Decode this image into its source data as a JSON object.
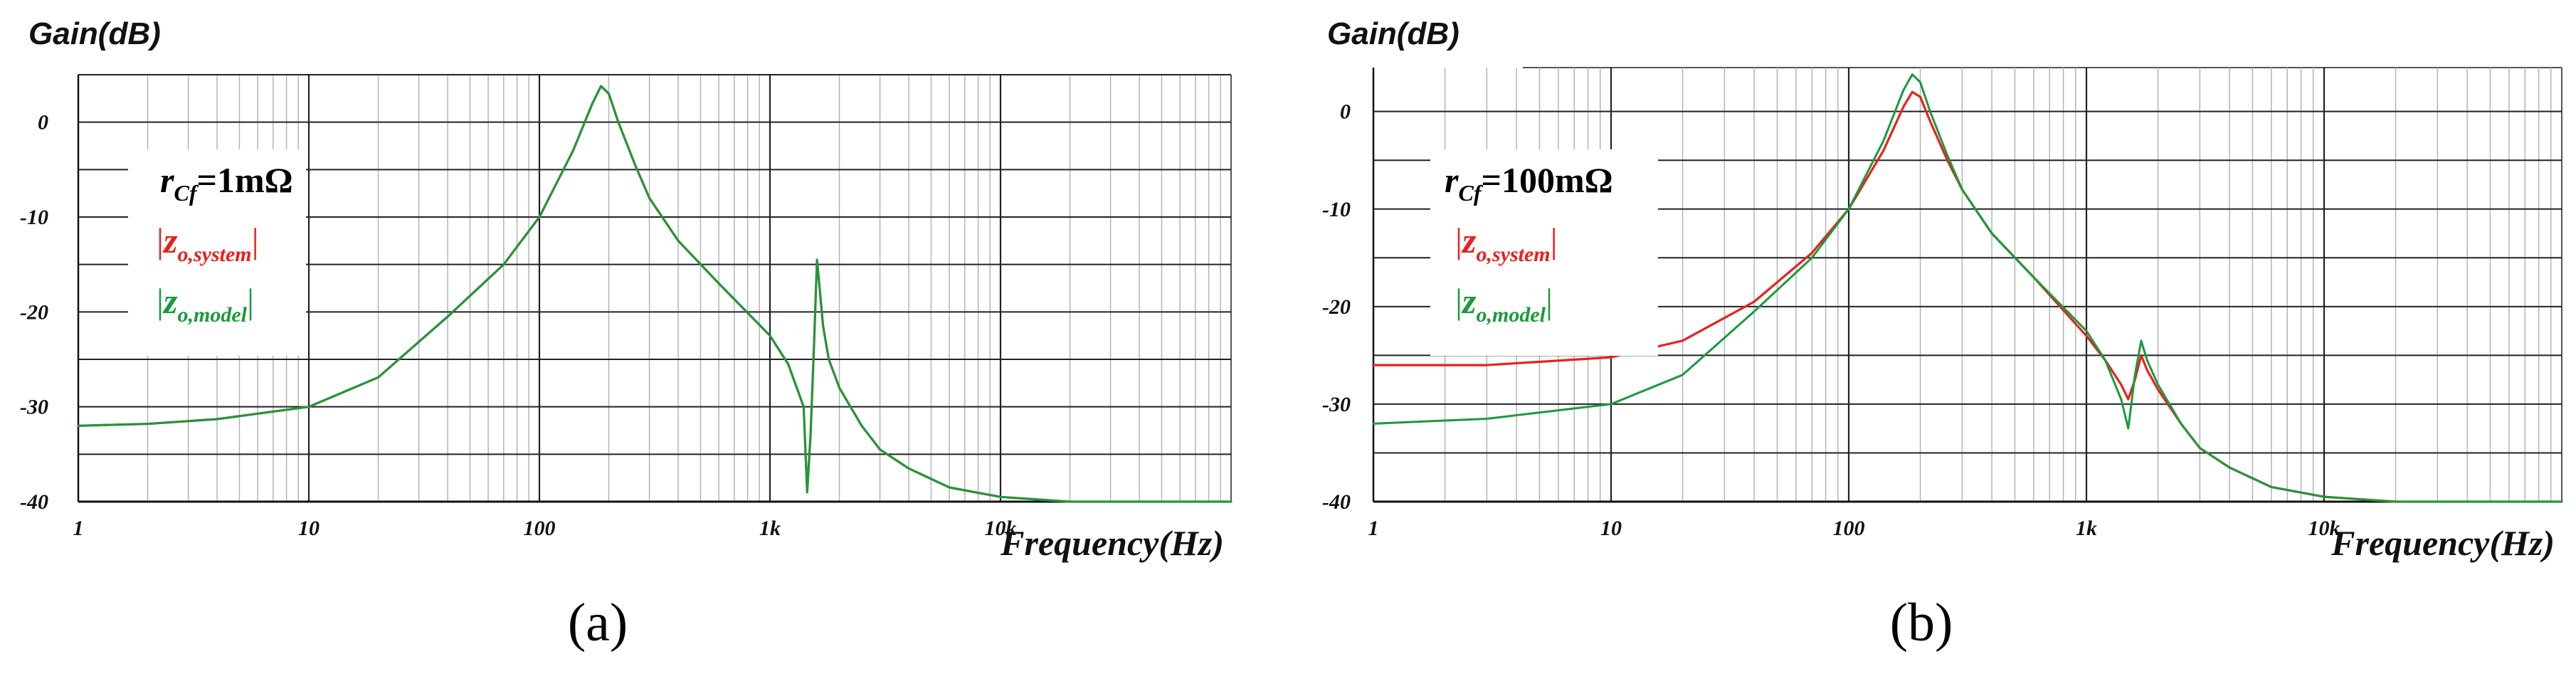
{
  "chart_data": [
    {
      "type": "line",
      "panel": "a",
      "caption": "(a)",
      "ylabel": "Gain(dB)",
      "xlabel": "Frequency(Hz)",
      "xscale": "log",
      "xlim": [
        1,
        100000
      ],
      "ylim": [
        -40,
        5
      ],
      "yticks": [
        0,
        -10,
        -20,
        -30,
        -40
      ],
      "ytick_labels": [
        "0",
        "-10",
        "-20",
        "-30",
        "-40"
      ],
      "xticks": [
        1,
        10,
        100,
        1000,
        10000
      ],
      "xtick_labels": [
        "1",
        "10",
        "100",
        "1k",
        "10k"
      ],
      "annotation": {
        "param_symbol": "r",
        "param_sub": "Cf",
        "param_value": "=1mΩ"
      },
      "legend_placement": "upper-left",
      "series": [
        {
          "name_main": "z",
          "name_sub": "o,system",
          "color": "#e8211f",
          "x": [
            1,
            2,
            4,
            10,
            20,
            40,
            70,
            100,
            140,
            170,
            185,
            200,
            220,
            260,
            300,
            400,
            600,
            1000,
            1200,
            1400,
            1450,
            1500,
            1550,
            1600,
            1650,
            1700,
            1800,
            2000,
            2500,
            3000,
            4000,
            6000,
            10000,
            20000,
            50000,
            100000
          ],
          "y": [
            -32,
            -31.8,
            -31.3,
            -30,
            -26.9,
            -20.5,
            -15,
            -10,
            -3,
            2,
            3.8,
            3,
            0,
            -4.5,
            -8,
            -12.5,
            -17,
            -22.5,
            -25.5,
            -30,
            -39,
            -33,
            -24,
            -14.5,
            -18,
            -21.5,
            -25,
            -28,
            -32,
            -34.5,
            -36.5,
            -38.5,
            -39.5,
            -40,
            -40,
            -40
          ]
        },
        {
          "name_main": "z",
          "name_sub": "o,model",
          "color": "#1a9a3c",
          "x": [
            1,
            2,
            4,
            10,
            20,
            40,
            70,
            100,
            140,
            170,
            185,
            200,
            220,
            260,
            300,
            400,
            600,
            1000,
            1200,
            1400,
            1450,
            1500,
            1550,
            1600,
            1650,
            1700,
            1800,
            2000,
            2500,
            3000,
            4000,
            6000,
            10000,
            20000,
            50000,
            100000
          ],
          "y": [
            -32,
            -31.8,
            -31.3,
            -30,
            -26.9,
            -20.5,
            -15,
            -10,
            -3,
            2,
            3.8,
            3,
            0,
            -4.5,
            -8,
            -12.5,
            -17,
            -22.5,
            -25.5,
            -30,
            -39,
            -33,
            -24,
            -14.5,
            -18,
            -21.5,
            -25,
            -28,
            -32,
            -34.5,
            -36.5,
            -38.5,
            -39.5,
            -40,
            -40,
            -40
          ]
        }
      ]
    },
    {
      "type": "line",
      "panel": "b",
      "caption": "(b)",
      "ylabel": "Gain(dB)",
      "xlabel": "Frequency(Hz)",
      "xscale": "log",
      "xlim": [
        1,
        100000
      ],
      "ylim": [
        -40,
        4.5
      ],
      "yticks": [
        0,
        -10,
        -20,
        -30,
        -40
      ],
      "ytick_labels": [
        "0",
        "-10",
        "-20",
        "-30",
        "-40"
      ],
      "xticks": [
        1,
        10,
        100,
        1000,
        10000
      ],
      "xtick_labels": [
        "1",
        "10",
        "100",
        "1k",
        "10k"
      ],
      "annotation": {
        "param_symbol": "r",
        "param_sub": "Cf",
        "param_value": "=100mΩ"
      },
      "legend_placement": "upper-left",
      "series": [
        {
          "name_main": "z",
          "name_sub": "o,system",
          "color": "#e8211f",
          "x": [
            1,
            3,
            10,
            20,
            40,
            70,
            100,
            140,
            170,
            185,
            200,
            220,
            260,
            300,
            400,
            600,
            1000,
            1200,
            1400,
            1500,
            1600,
            1700,
            1800,
            2000,
            2500,
            3000,
            4000,
            6000,
            10000,
            20000,
            50000,
            100000
          ],
          "y": [
            -26,
            -26,
            -25.2,
            -23.5,
            -19.5,
            -14.5,
            -10,
            -4,
            0.5,
            2,
            1.5,
            -1,
            -5,
            -8,
            -12.5,
            -17,
            -23,
            -25.5,
            -28,
            -29.5,
            -27.5,
            -25,
            -26.5,
            -28.5,
            -32,
            -34.5,
            -36.5,
            -38.5,
            -39.5,
            -40,
            -40,
            -40
          ]
        },
        {
          "name_main": "z",
          "name_sub": "o,model",
          "color": "#1a9a3c",
          "x": [
            1,
            3,
            10,
            20,
            40,
            70,
            100,
            140,
            170,
            185,
            200,
            220,
            260,
            300,
            400,
            600,
            1000,
            1200,
            1400,
            1500,
            1600,
            1700,
            1800,
            2000,
            2500,
            3000,
            4000,
            6000,
            10000,
            20000,
            50000,
            100000
          ],
          "y": [
            -32,
            -31.5,
            -30,
            -27,
            -20.5,
            -15,
            -10,
            -3,
            2.2,
            3.8,
            3,
            0,
            -4.5,
            -8,
            -12.5,
            -17,
            -22.5,
            -25.5,
            -29.5,
            -32.5,
            -27,
            -23.5,
            -25.5,
            -28,
            -32,
            -34.5,
            -36.5,
            -38.5,
            -39.5,
            -40,
            -40,
            -40
          ]
        }
      ]
    }
  ]
}
